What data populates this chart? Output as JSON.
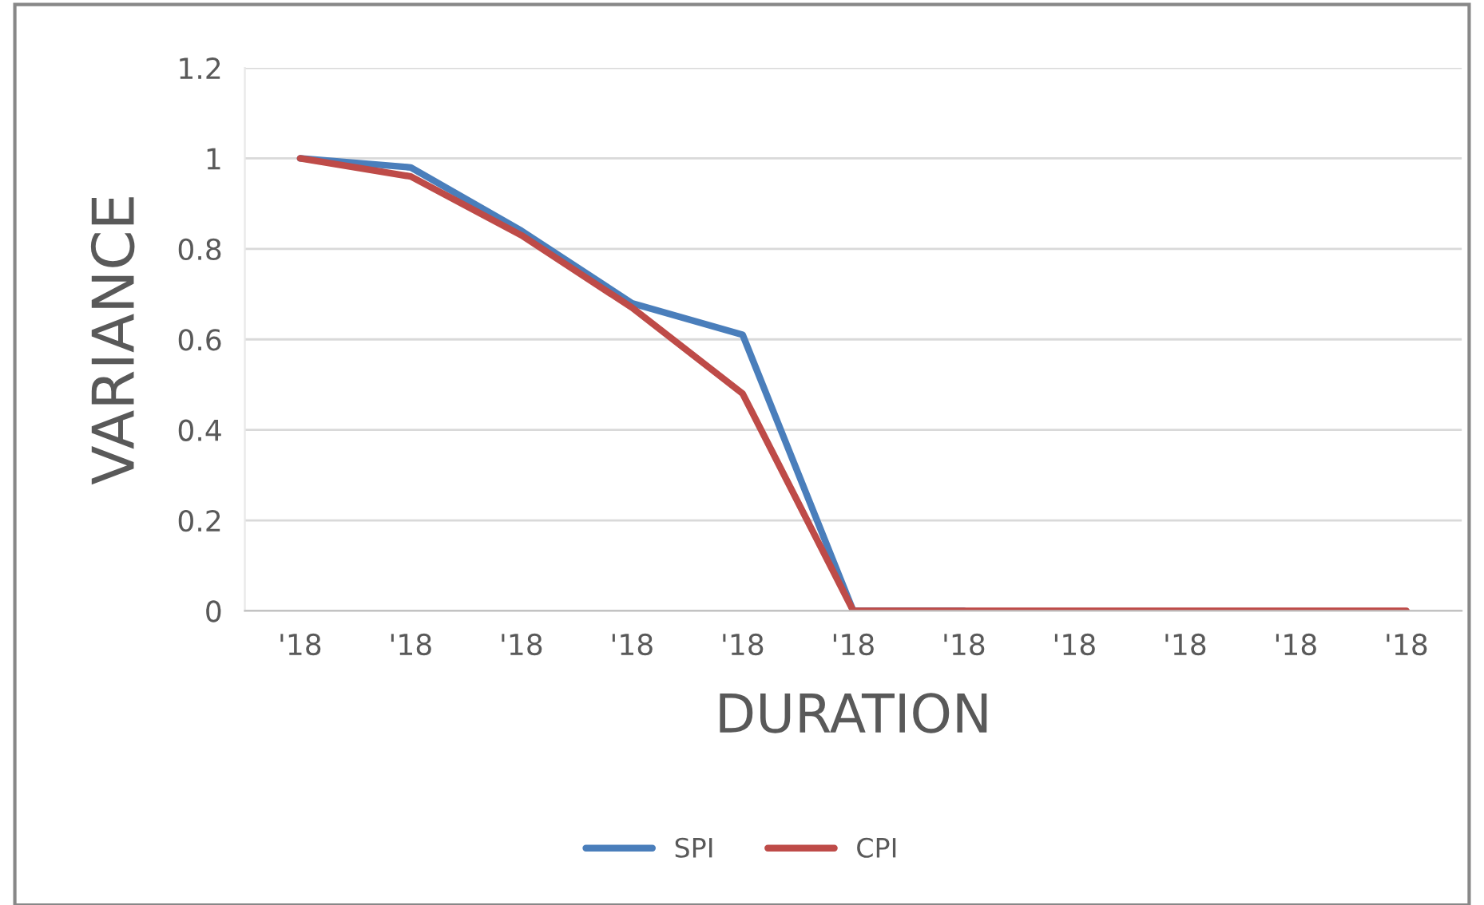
{
  "chart_data": {
    "type": "line",
    "xlabel": "DURATION",
    "ylabel": "VARIANCE",
    "categories": [
      "'18",
      "'18",
      "'18",
      "'18",
      "'18",
      "'18",
      "'18",
      "'18",
      "'18",
      "'18",
      "'18"
    ],
    "series": [
      {
        "name": "SPI",
        "color": "#4a7ebb",
        "values": [
          1.0,
          0.98,
          0.84,
          0.68,
          0.61,
          0,
          0,
          null,
          null,
          null,
          null
        ]
      },
      {
        "name": "CPI",
        "color": "#be4b48",
        "values": [
          1.0,
          0.96,
          0.83,
          0.67,
          0.48,
          0,
          0,
          0,
          0,
          0,
          0
        ]
      }
    ],
    "ylim": [
      0,
      1.2
    ],
    "yticks": [
      0,
      0.2,
      0.4,
      0.6,
      0.8,
      1,
      1.2
    ],
    "grid": "y",
    "legend": "bottom",
    "marker": "none",
    "line_style": "solid"
  }
}
